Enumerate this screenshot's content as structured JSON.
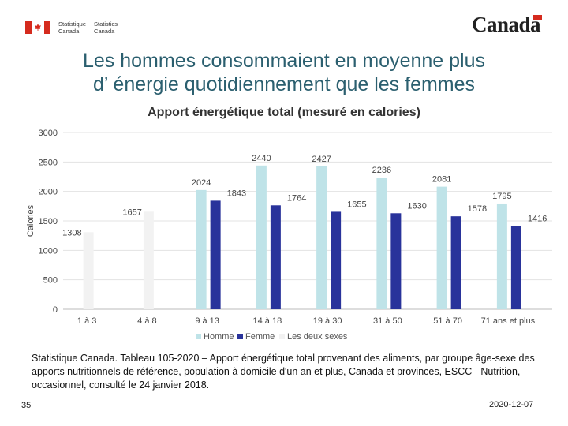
{
  "header": {
    "fip_en": [
      "Statistique",
      "Canada"
    ],
    "fip_fr": [
      "Statistics",
      "Canada"
    ],
    "wordmark": "Canada"
  },
  "slide": {
    "title_line1": "Les hommes consommaient en moyenne plus",
    "title_line2": "d’ énergie quotidiennement que les femmes",
    "source": "Statistique Canada. Tableau 105-2020 – Apport énergétique total provenant des aliments, par groupe âge-sexe des apports nutritionnels de référence, population à domicile d'un an et plus, Canada et provinces, ESCC - Nutrition, occasionnel, consulté le 24 janvier 2018.",
    "page_number": "35",
    "date": "2020-12-07"
  },
  "chart_data": {
    "type": "bar",
    "title": "Apport énergétique total (mesuré en calories)",
    "ylabel": "Calories",
    "xlabel": "",
    "ylim": [
      0,
      3000
    ],
    "yticks": [
      0,
      500,
      1000,
      1500,
      2000,
      2500,
      3000
    ],
    "categories": [
      "1 à 3",
      "4 à 8",
      "9 à 13",
      "14 à 18",
      "19 à 30",
      "31 à 50",
      "51 à 70",
      "71 ans et plus"
    ],
    "series": [
      {
        "name": "Homme",
        "color": "#bfe3e8",
        "values": [
          null,
          null,
          2024,
          2440,
          2427,
          2236,
          2081,
          1795
        ]
      },
      {
        "name": "Femme",
        "color": "#29339b",
        "values": [
          null,
          null,
          1843,
          1764,
          1655,
          1630,
          1578,
          1416
        ]
      },
      {
        "name": "Les deux sexes",
        "color": "#f2f2f2",
        "values": [
          1308,
          1657,
          null,
          null,
          null,
          null,
          null,
          null
        ]
      }
    ],
    "legend_position": "bottom",
    "grid": true
  }
}
